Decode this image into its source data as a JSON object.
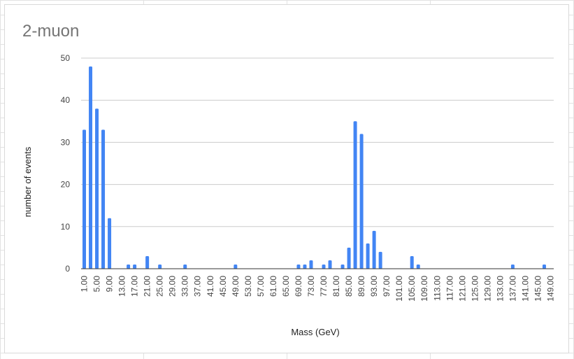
{
  "chart_data": {
    "type": "bar",
    "title": "2-muon",
    "xlabel": "Mass (GeV)",
    "ylabel": "number of events",
    "ylim": [
      0,
      50
    ],
    "yticks": [
      "0",
      "10",
      "20",
      "30",
      "40",
      "50"
    ],
    "grid": true,
    "legend": "none",
    "bar_color": "#4285f4",
    "categories": [
      "1.00",
      "3.00",
      "5.00",
      "7.00",
      "9.00",
      "11.00",
      "13.00",
      "15.00",
      "17.00",
      "19.00",
      "21.00",
      "23.00",
      "25.00",
      "27.00",
      "29.00",
      "31.00",
      "33.00",
      "35.00",
      "37.00",
      "39.00",
      "41.00",
      "43.00",
      "45.00",
      "47.00",
      "49.00",
      "51.00",
      "53.00",
      "55.00",
      "57.00",
      "59.00",
      "61.00",
      "63.00",
      "65.00",
      "67.00",
      "69.00",
      "71.00",
      "73.00",
      "75.00",
      "77.00",
      "79.00",
      "81.00",
      "83.00",
      "85.00",
      "87.00",
      "89.00",
      "91.00",
      "93.00",
      "95.00",
      "97.00",
      "99.00",
      "101.00",
      "103.00",
      "105.00",
      "107.00",
      "109.00",
      "111.00",
      "113.00",
      "115.00",
      "117.00",
      "119.00",
      "121.00",
      "123.00",
      "125.00",
      "127.00",
      "129.00",
      "131.00",
      "133.00",
      "135.00",
      "137.00",
      "139.00",
      "141.00",
      "143.00",
      "145.00",
      "147.00",
      "149.00"
    ],
    "x_tick_labels": [
      "1.00",
      "5.00",
      "9.00",
      "13.00",
      "17.00",
      "21.00",
      "25.00",
      "29.00",
      "33.00",
      "37.00",
      "41.00",
      "45.00",
      "49.00",
      "53.00",
      "57.00",
      "61.00",
      "65.00",
      "69.00",
      "73.00",
      "77.00",
      "81.00",
      "85.00",
      "89.00",
      "93.00",
      "97.00",
      "101.00",
      "105.00",
      "109.00",
      "113.00",
      "117.00",
      "121.00",
      "125.00",
      "129.00",
      "133.00",
      "137.00",
      "141.00",
      "145.00",
      "149.00"
    ],
    "values": [
      33,
      48,
      38,
      33,
      12,
      0,
      0,
      1,
      1,
      0,
      3,
      0,
      1,
      0,
      0,
      0,
      1,
      0,
      0,
      0,
      0,
      0,
      0,
      0,
      1,
      0,
      0,
      0,
      0,
      0,
      0,
      0,
      0,
      0,
      1,
      1,
      2,
      0,
      1,
      2,
      0,
      1,
      5,
      35,
      32,
      6,
      9,
      4,
      0,
      0,
      0,
      0,
      3,
      1,
      0,
      0,
      0,
      0,
      0,
      0,
      0,
      0,
      0,
      0,
      0,
      0,
      0,
      0,
      1,
      0,
      0,
      0,
      0,
      1,
      0
    ]
  }
}
